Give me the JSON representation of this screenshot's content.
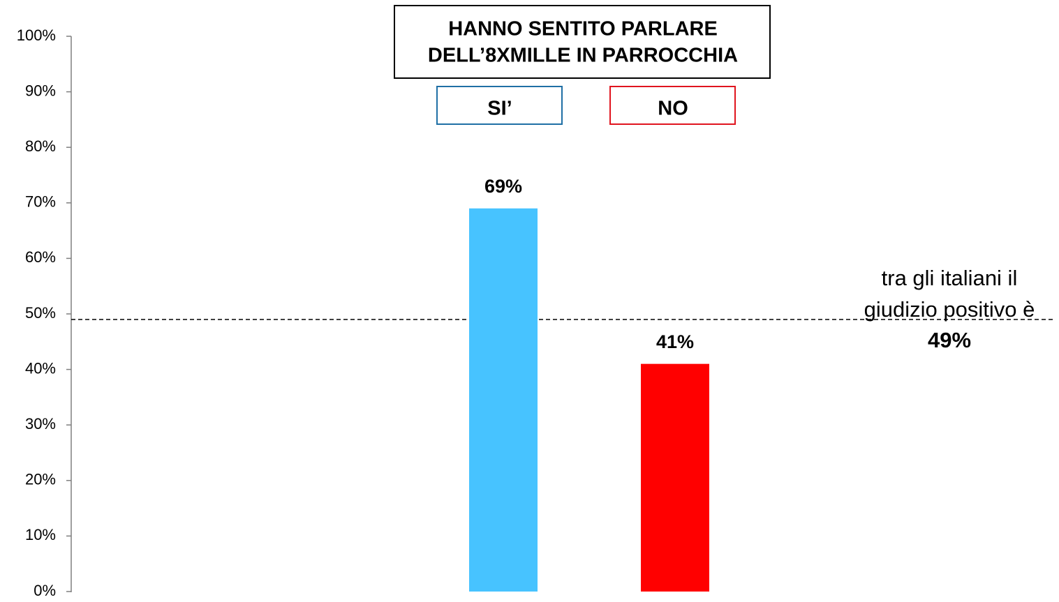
{
  "chart_data": {
    "type": "bar",
    "title": [
      "HANNO SENTITO PARLARE",
      "DELL’8XMILLE IN PARROCCHIA"
    ],
    "categories": [
      "SI’",
      "NO"
    ],
    "values": [
      69,
      41
    ],
    "value_labels": [
      "69%",
      "41%"
    ],
    "colors": [
      "#47c3ff",
      "#ff0000"
    ],
    "legend_border_colors": [
      "#1f6fa5",
      "#e0141e"
    ],
    "ylim": [
      0,
      100
    ],
    "yticks": [
      {
        "value": 0,
        "label": "0%"
      },
      {
        "value": 10,
        "label": "10%"
      },
      {
        "value": 20,
        "label": "20%"
      },
      {
        "value": 30,
        "label": "30%"
      },
      {
        "value": 40,
        "label": "40%"
      },
      {
        "value": 50,
        "label": "50%"
      },
      {
        "value": 60,
        "label": "60%"
      },
      {
        "value": 70,
        "label": "70%"
      },
      {
        "value": 80,
        "label": "80%"
      },
      {
        "value": 90,
        "label": "90%"
      },
      {
        "value": 100,
        "label": "100%"
      }
    ],
    "annotation": [
      "tra gli italiani il",
      "giudizio positivo è"
    ],
    "reference_line": {
      "value": 49,
      "label": "49%"
    }
  }
}
